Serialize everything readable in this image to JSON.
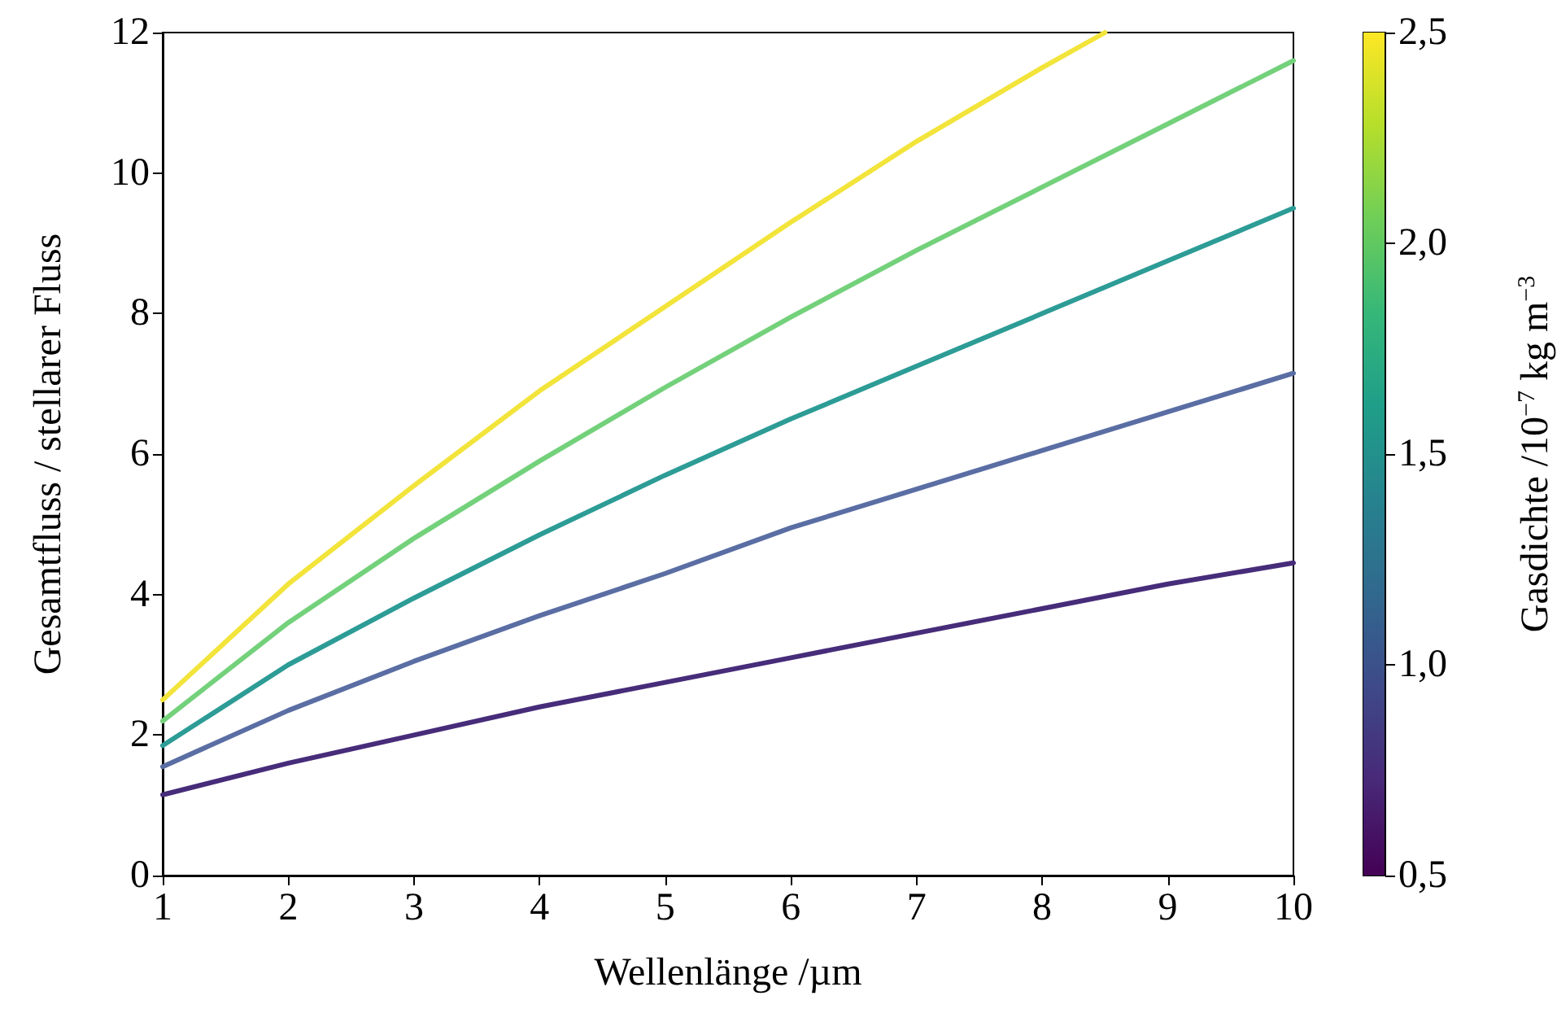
{
  "chart_data": {
    "type": "line",
    "xlabel": "Wellenlänge /µm",
    "ylabel": "Gesamtfluss / stellarer Fluss",
    "clabel": "Gasdichte /10$^{−7}$ kg m$^{−3}$",
    "x": [
      1,
      2,
      3,
      4,
      5,
      6,
      7,
      8,
      9,
      10
    ],
    "series": [
      {
        "color": "#472c7a",
        "values": [
          1.15,
          1.6,
          2.0,
          2.4,
          2.75,
          3.1,
          3.45,
          3.8,
          4.15,
          4.45
        ]
      },
      {
        "color": "#5a6ea4",
        "values": [
          1.55,
          2.35,
          3.05,
          3.7,
          4.3,
          4.95,
          5.5,
          6.05,
          6.6,
          7.15
        ]
      },
      {
        "color": "#2d9c96",
        "values": [
          1.85,
          3.0,
          3.95,
          4.85,
          5.7,
          6.5,
          7.25,
          8.0,
          8.75,
          9.5
        ]
      },
      {
        "color": "#74d17b",
        "values": [
          2.2,
          3.6,
          4.8,
          5.9,
          6.95,
          7.95,
          8.9,
          9.8,
          10.7,
          11.6
        ]
      },
      {
        "color": "#f2e43a",
        "x": [
          1,
          2,
          3,
          4,
          5,
          6,
          7,
          8,
          8.5
        ],
        "values": [
          2.5,
          4.15,
          5.55,
          6.9,
          8.1,
          9.3,
          10.45,
          11.5,
          12
        ]
      }
    ],
    "xlim": [
      1,
      10
    ],
    "xticks": [
      1,
      2,
      3,
      4,
      5,
      6,
      7,
      8,
      9,
      10
    ],
    "ylim": [
      0,
      12
    ],
    "yticks": [
      0,
      2,
      4,
      6,
      8,
      10,
      12
    ],
    "clim": [
      0.5,
      2.5
    ],
    "cticks": [
      {
        "value": 0.5,
        "label": "0,5"
      },
      {
        "value": 1.0,
        "label": "1,0"
      },
      {
        "value": 1.5,
        "label": "1,5"
      },
      {
        "value": 2.0,
        "label": "2,0"
      },
      {
        "value": 2.5,
        "label": "2,5"
      }
    ],
    "grid": false,
    "marker": "none",
    "line_style": "solid"
  }
}
